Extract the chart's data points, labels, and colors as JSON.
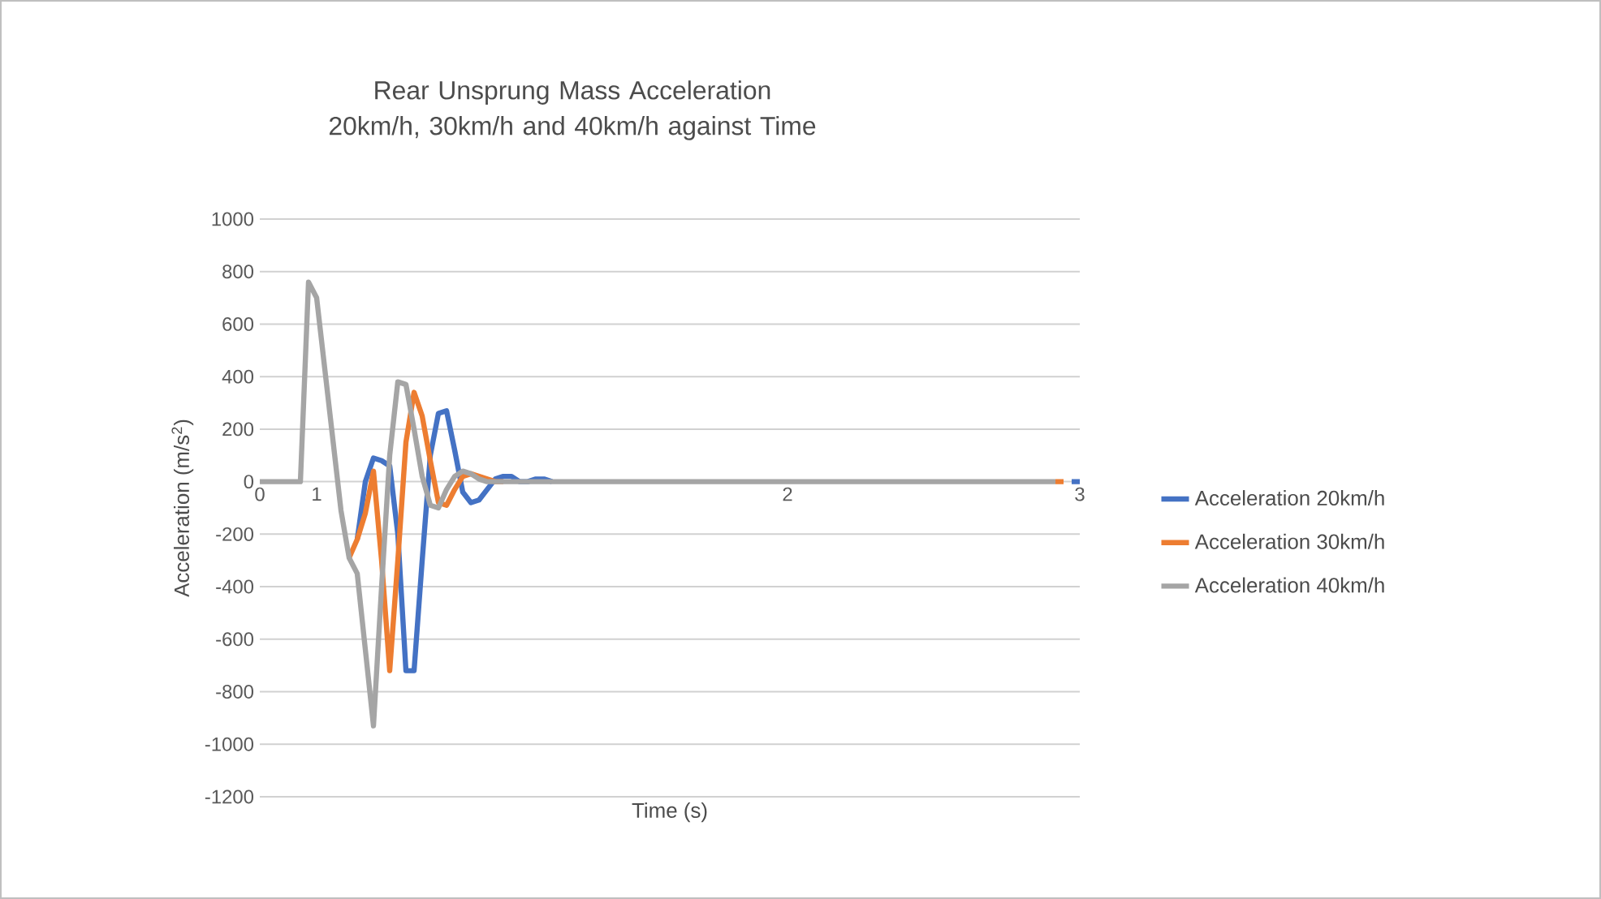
{
  "chart_data": {
    "type": "line",
    "title": "Rear Unsprung Mass Acceleration 20km/h, 30km/h and 40km/h against Time",
    "xlabel": "Time (s)",
    "ylabel": "Acceleration (m/s$^{2}$)",
    "categories": [
      "0",
      null,
      null,
      null,
      null,
      null,
      null,
      "1",
      null,
      null,
      null,
      null,
      null,
      null,
      null,
      null,
      null,
      null,
      null,
      null,
      null,
      null,
      null,
      null,
      null,
      null,
      null,
      null,
      null,
      null,
      null,
      null,
      null,
      null,
      null,
      null,
      null,
      null,
      null,
      null,
      null,
      null,
      null,
      null,
      null,
      null,
      null,
      null,
      null,
      null,
      null,
      null,
      null,
      null,
      null,
      null,
      null,
      null,
      null,
      null,
      null,
      null,
      null,
      null,
      null,
      "2",
      null,
      null,
      null,
      null,
      null,
      null,
      null,
      null,
      null,
      null,
      null,
      null,
      null,
      null,
      null,
      null,
      null,
      null,
      null,
      null,
      null,
      null,
      null,
      null,
      null,
      null,
      null,
      null,
      null,
      null,
      null,
      null,
      null,
      null,
      null,
      "3"
    ],
    "series": [
      {
        "name": "Acceleration 20km/h",
        "color": "#4472c4",
        "values": [
          null,
          null,
          null,
          null,
          null,
          null,
          null,
          null,
          null,
          null,
          null,
          null,
          -220,
          0,
          90,
          80,
          60,
          -200,
          -720,
          -720,
          -300,
          100,
          260,
          270,
          120,
          -40,
          -80,
          -70,
          -30,
          10,
          20,
          20,
          0,
          0,
          10,
          10,
          0,
          null,
          null,
          null,
          null,
          null,
          null,
          null,
          null,
          null,
          null,
          null,
          null,
          null,
          null,
          null,
          null,
          null,
          null,
          null,
          null,
          null,
          null,
          null,
          null,
          null,
          null,
          null,
          null,
          null,
          null,
          null,
          null,
          null,
          null,
          null,
          null,
          null,
          null,
          null,
          null,
          null,
          null,
          null,
          null,
          null,
          null,
          null,
          null,
          null,
          null,
          null,
          null,
          null,
          null,
          null,
          null,
          null,
          null,
          null,
          null,
          null,
          null,
          null,
          0,
          0
        ]
      },
      {
        "name": "Acceleration 30km/h",
        "color": "#ed7d31",
        "values": [
          null,
          null,
          null,
          null,
          null,
          null,
          null,
          null,
          null,
          null,
          null,
          -290,
          -220,
          -120,
          40,
          -300,
          -720,
          -300,
          150,
          340,
          250,
          80,
          -80,
          -90,
          -30,
          20,
          30,
          20,
          10,
          0,
          0,
          null,
          null,
          null,
          null,
          null,
          null,
          null,
          null,
          null,
          null,
          null,
          null,
          null,
          null,
          null,
          null,
          null,
          null,
          null,
          null,
          null,
          null,
          null,
          null,
          null,
          null,
          null,
          null,
          null,
          null,
          null,
          null,
          null,
          null,
          null,
          null,
          null,
          null,
          null,
          null,
          null,
          null,
          null,
          null,
          null,
          null,
          null,
          null,
          null,
          null,
          null,
          null,
          null,
          null,
          null,
          null,
          null,
          null,
          null,
          null,
          null,
          null,
          null,
          null,
          null,
          null,
          null,
          0,
          0,
          null,
          null
        ]
      },
      {
        "name": "Acceleration 40km/h",
        "color": "#a5a5a5",
        "values": [
          0,
          0,
          0,
          0,
          0,
          0,
          760,
          700,
          430,
          160,
          -110,
          -290,
          -350,
          -640,
          -930,
          -400,
          100,
          380,
          370,
          200,
          20,
          -90,
          -100,
          -30,
          20,
          40,
          30,
          10,
          0,
          0,
          0,
          0,
          0,
          0,
          0,
          0,
          0,
          0,
          0,
          0,
          0,
          0,
          0,
          0,
          0,
          0,
          0,
          0,
          0,
          0,
          0,
          0,
          0,
          0,
          0,
          0,
          0,
          0,
          0,
          0,
          0,
          0,
          0,
          0,
          0,
          0,
          0,
          0,
          0,
          0,
          0,
          0,
          0,
          0,
          0,
          0,
          0,
          0,
          0,
          0,
          0,
          0,
          0,
          0,
          0,
          0,
          0,
          0,
          0,
          0,
          0,
          0,
          0,
          0,
          0,
          0,
          0,
          0,
          0,
          null,
          null,
          null
        ]
      }
    ],
    "ylim": [
      -1200,
      1000
    ],
    "yticks": [
      -1200,
      -1000,
      -800,
      -600,
      -400,
      -200,
      0,
      200,
      400,
      600,
      800,
      1000
    ],
    "grid": "y",
    "legend": "right",
    "marker": "none",
    "line_style": "solid"
  }
}
